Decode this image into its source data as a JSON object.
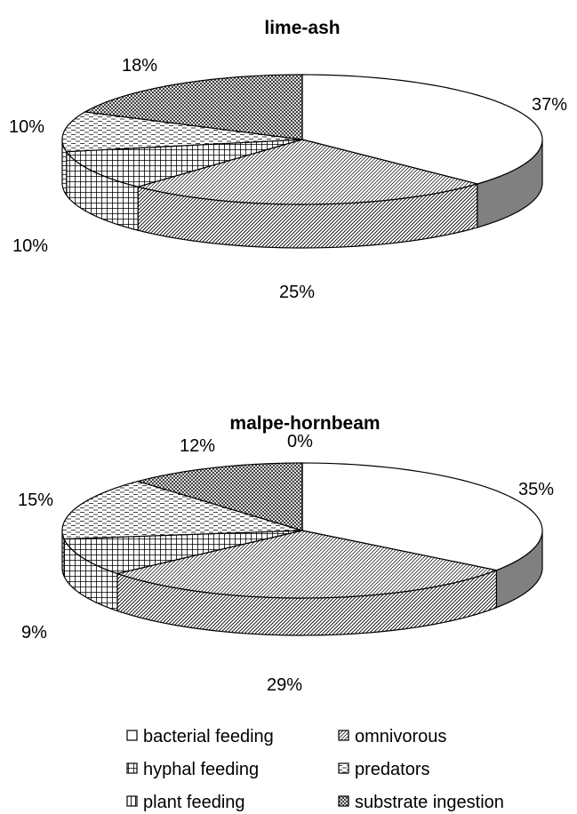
{
  "chart_data": [
    {
      "type": "pie",
      "title": "lime-ash",
      "slices": [
        {
          "category": "bacterial feeding",
          "value": 37,
          "label": "37%"
        },
        {
          "category": "omnivorous",
          "value": 25,
          "label": "25%"
        },
        {
          "category": "hyphal feeding",
          "value": 10,
          "label": "10%"
        },
        {
          "category": "predators",
          "value": 10,
          "label": "10%"
        },
        {
          "category": "substrate ingestion",
          "value": 18,
          "label": "18%"
        }
      ]
    },
    {
      "type": "pie",
      "title": "malpe-hornbeam",
      "slices": [
        {
          "category": "bacterial feeding",
          "value": 35,
          "label": "35%"
        },
        {
          "category": "omnivorous",
          "value": 29,
          "label": "29%"
        },
        {
          "category": "hyphal feeding",
          "value": 9,
          "label": "9%"
        },
        {
          "category": "predators",
          "value": 15,
          "label": "15%"
        },
        {
          "category": "substrate ingestion",
          "value": 12,
          "label": "12%"
        },
        {
          "category": "plant feeding",
          "value": 0,
          "label": "0%"
        }
      ]
    }
  ],
  "legend": {
    "placement": "bottom",
    "items": [
      {
        "key": "bacterial feeding",
        "label": "bacterial feeding"
      },
      {
        "key": "omnivorous",
        "label": "omnivorous"
      },
      {
        "key": "hyphal feeding",
        "label": "hyphal feeding"
      },
      {
        "key": "predators",
        "label": "predators"
      },
      {
        "key": "plant feeding",
        "label": "plant feeding"
      },
      {
        "key": "substrate ingestion",
        "label": "substrate ingestion"
      }
    ]
  }
}
